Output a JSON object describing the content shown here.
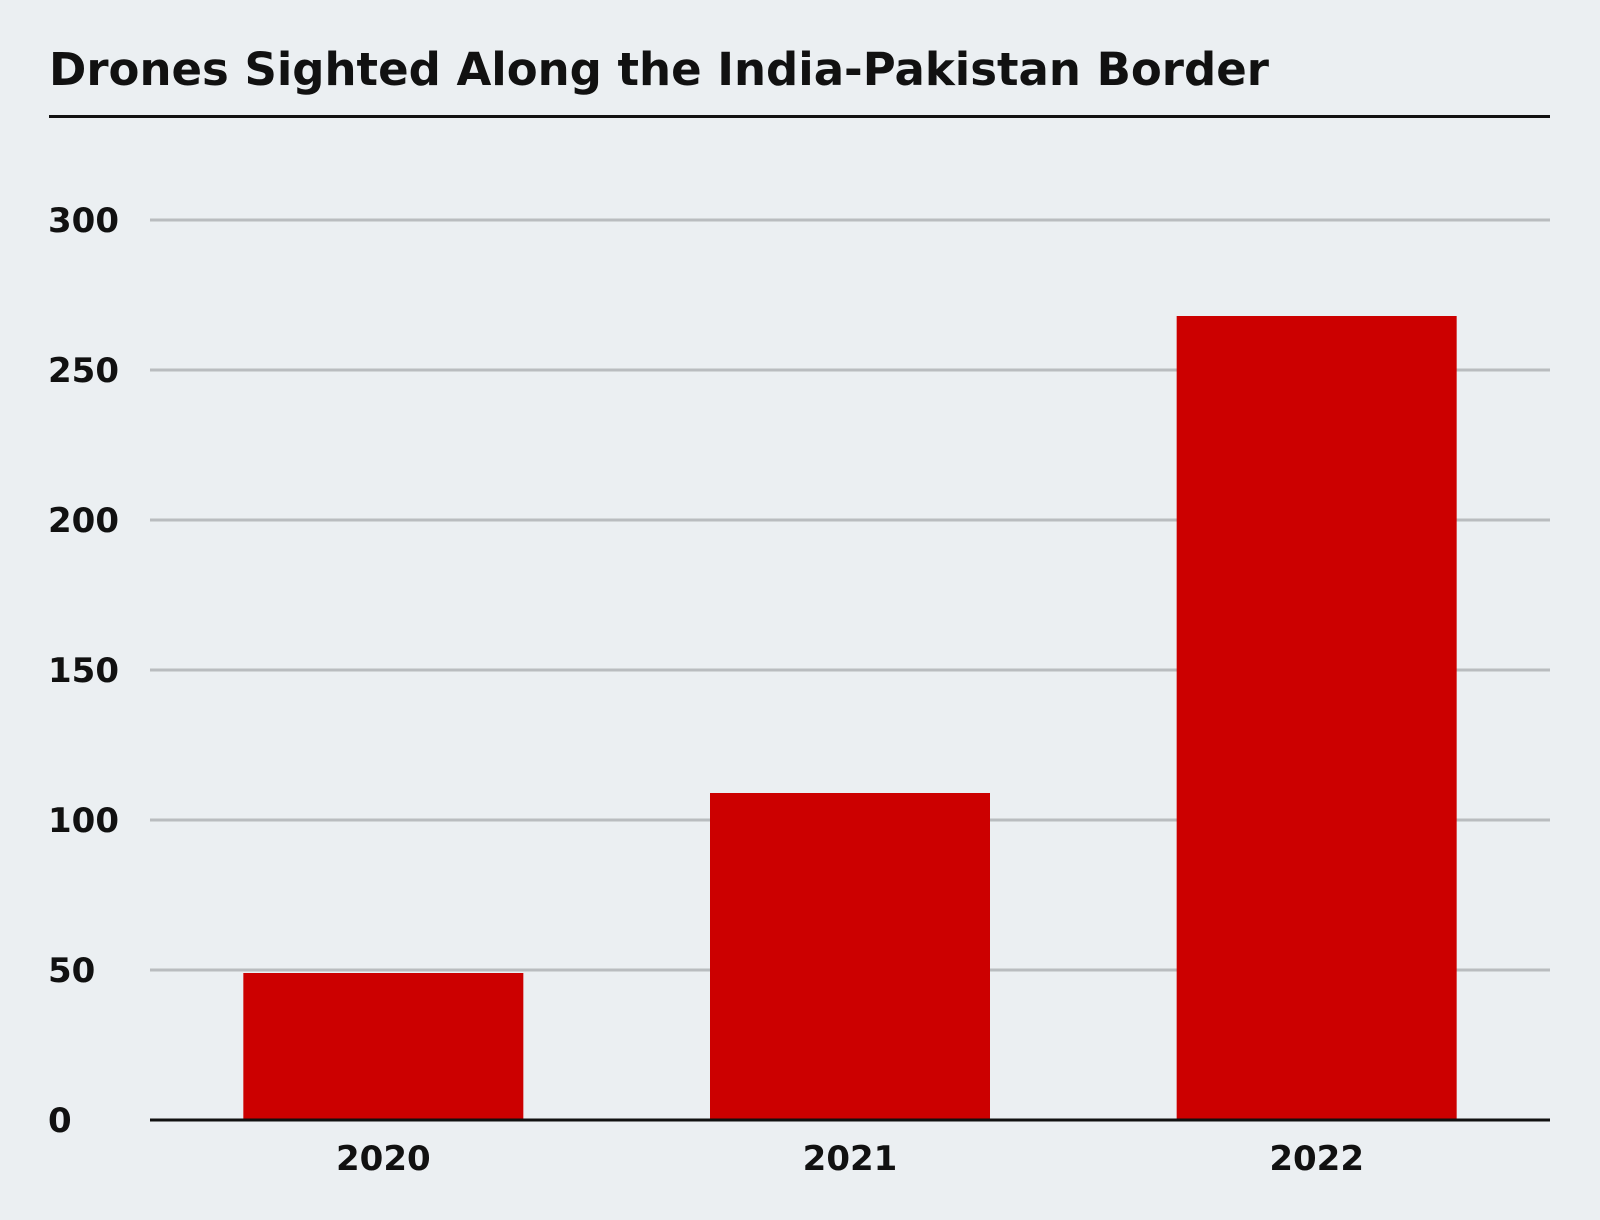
{
  "chart_data": {
    "type": "bar",
    "title": "Drones Sighted Along the India-Pakistan Border",
    "categories": [
      "2020",
      "2021",
      "2022"
    ],
    "values": [
      49,
      109,
      268
    ],
    "ylim": [
      0,
      300
    ],
    "yticks": [
      "0",
      "50",
      "100",
      "150",
      "200",
      "250",
      "300"
    ],
    "xlabel": "",
    "ylabel": "",
    "grid": true,
    "legend": "none",
    "colors": {
      "bar": "#cc0000",
      "grid": "#b9bcbf",
      "axis": "#111111",
      "background": "#ebeff2"
    }
  }
}
